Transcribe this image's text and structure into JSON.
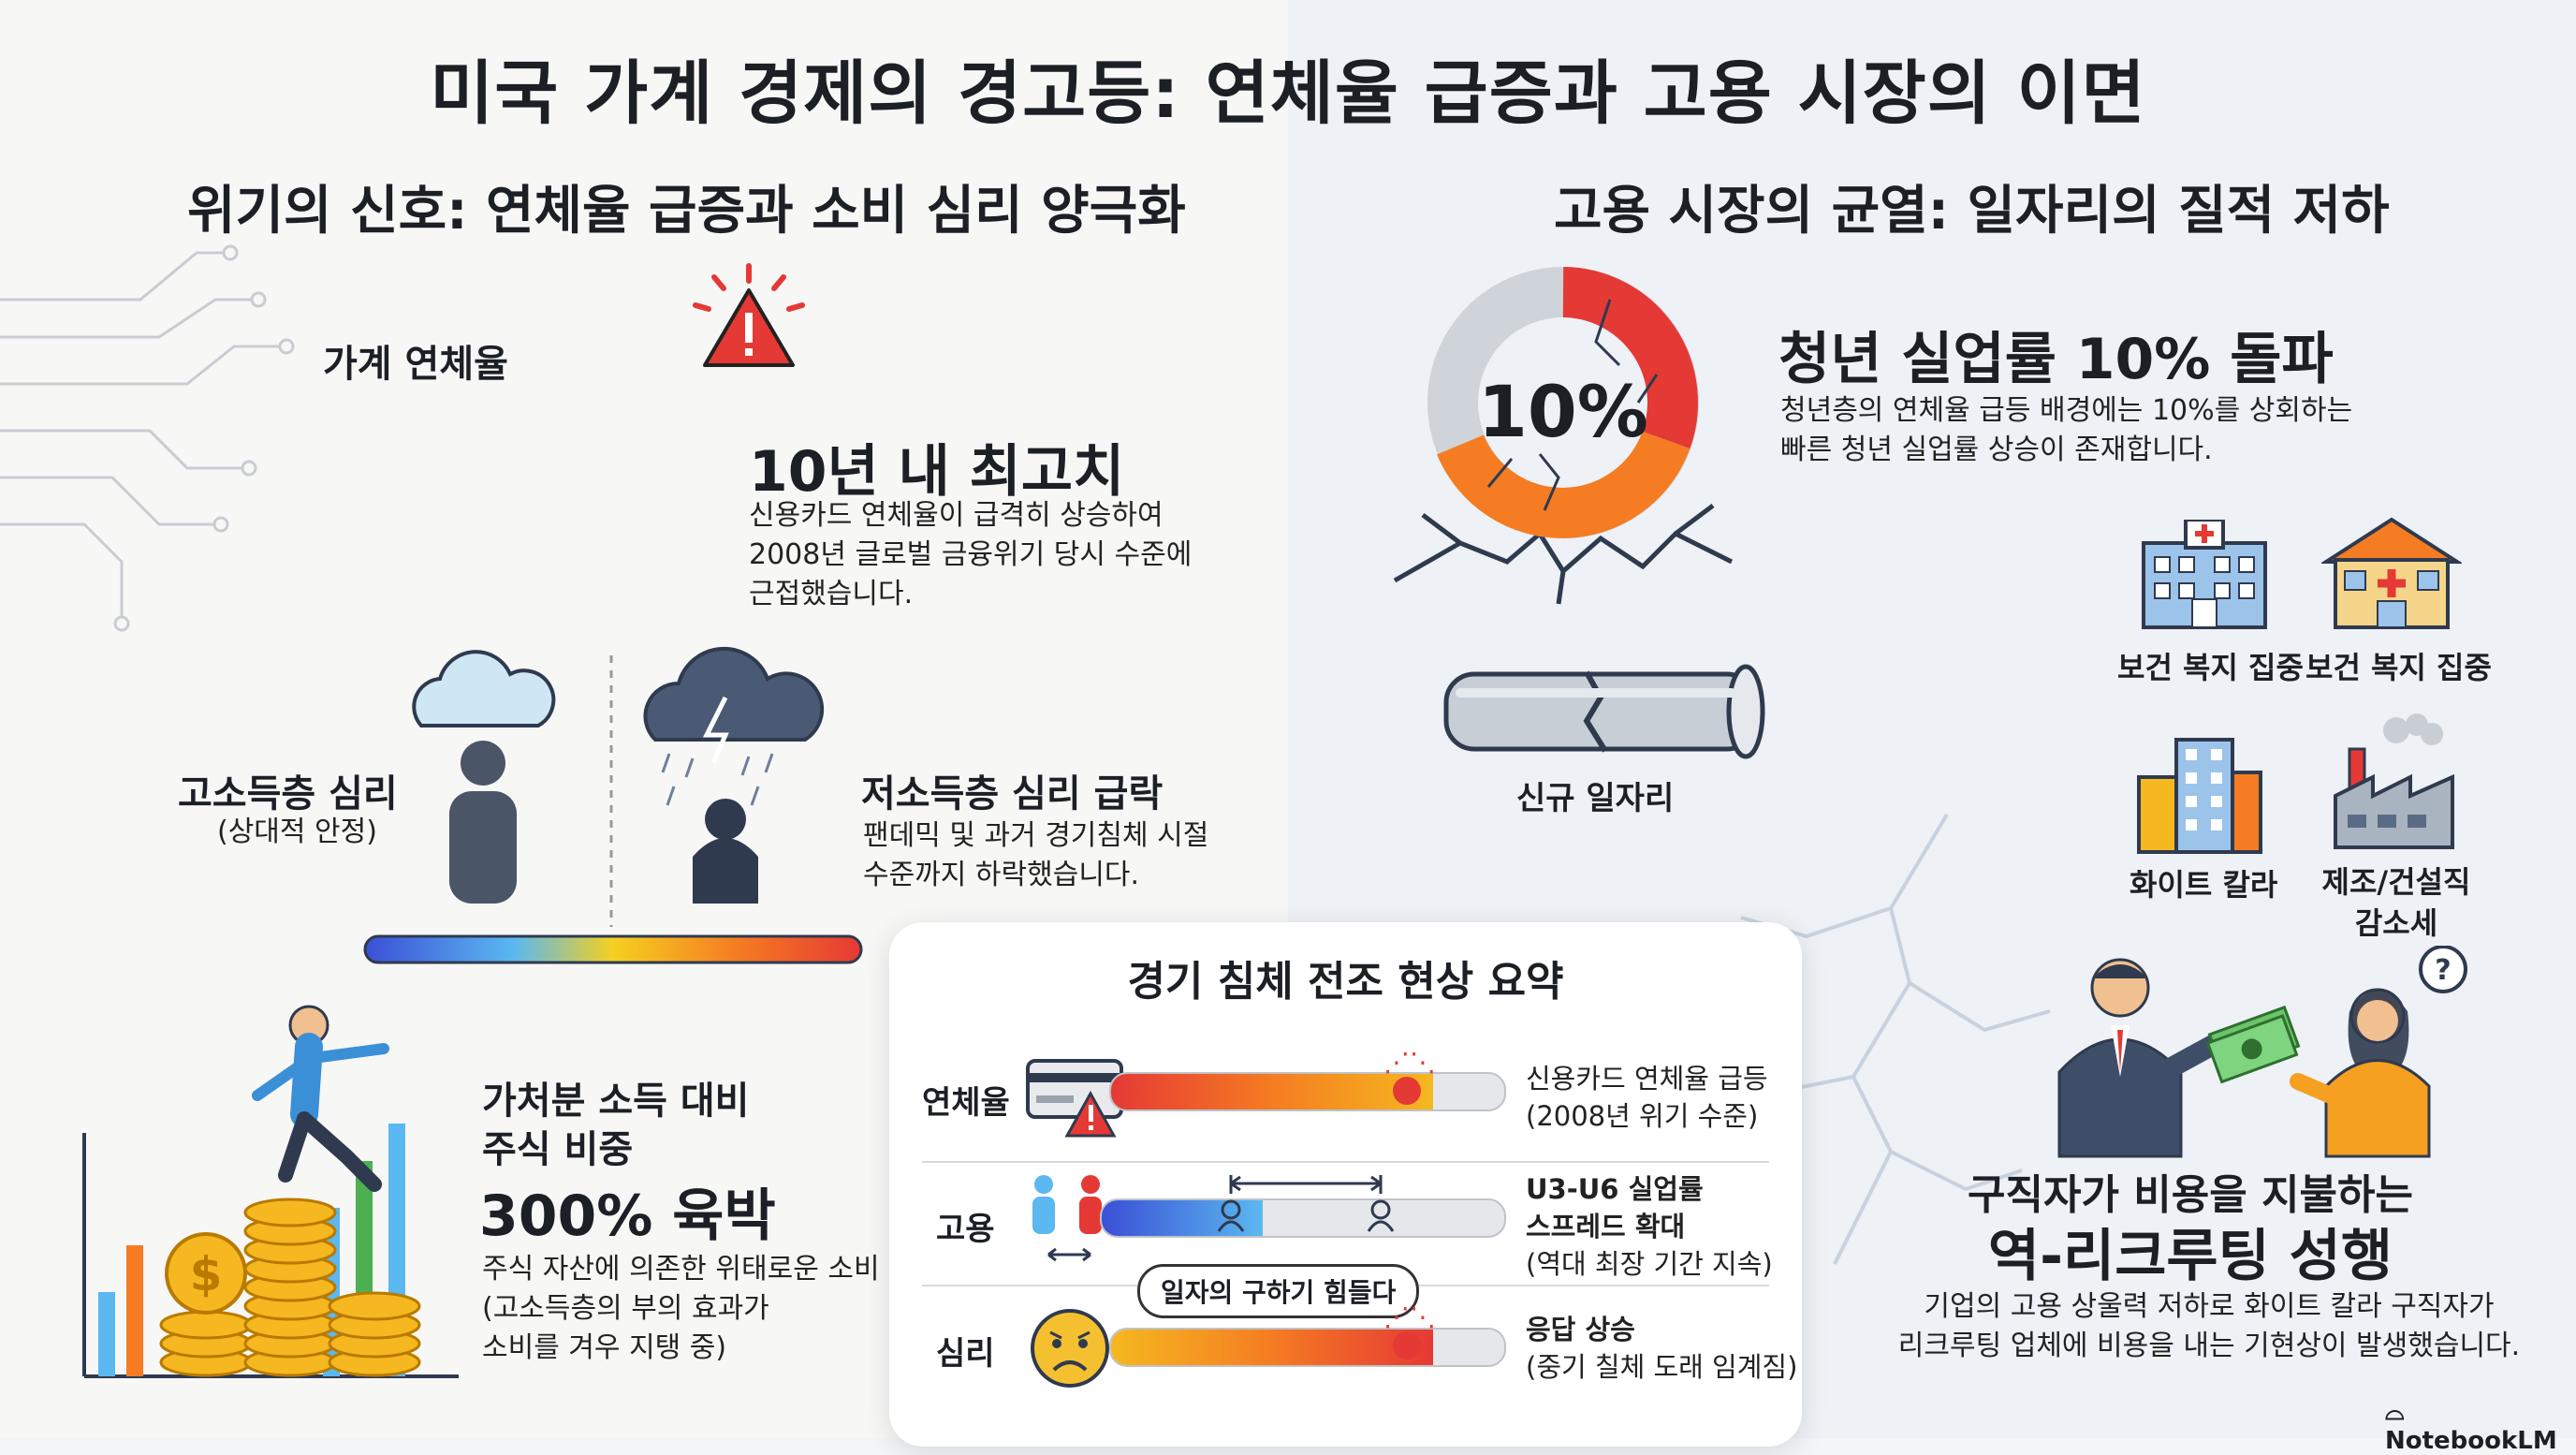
{
  "title": "미국 가계 경제의 경고등: 연체율 급증과 고용 시장의 이면",
  "left": {
    "section_title": "위기의 신호: 연체율 급증과 소비 심리 양극화",
    "delinquency_label": "가계 연체율",
    "highest_title": "10년 내 최고치",
    "highest_desc": [
      "신용카드 연체율이 급격히 상승하여",
      "2008년 글로벌 금융위기 당시 수준에",
      "근접했습니다."
    ],
    "high_income_title": "고소득층 심리",
    "high_income_sub": "(상대적 안정)",
    "low_income_title": "저소득층 심리 급락",
    "low_income_desc": [
      "팬데믹 및 과거 경기침체 시절",
      "수준까지 하락했습니다."
    ],
    "stock_title": [
      "가처분 소득 대비",
      "주식 비중"
    ],
    "stock_big": "300% 육박",
    "stock_desc": [
      "주식 자산에 의존한 위태로운 소비",
      "(고소득층의 부의 효과가",
      "소비를 겨우 지탱 중)"
    ]
  },
  "right": {
    "section_title": "고용 시장의 균열: 일자리의 질적 저하",
    "donut_value": "10%",
    "youth_title": "청년 실업률 10% 돌파",
    "youth_desc": [
      "청년층의 연체율 급등 배경에는 10%를 상회하는",
      "빠른 청년 실업률 상승이 존재합니다."
    ],
    "new_jobs": "신규 일자리",
    "icon_labels": [
      "보건 복지 집중",
      "보건 복지 집중",
      "화이트 칼라",
      "제조/건설직"
    ],
    "decline_label": "감소세",
    "reverse_title_1": "구직자가 비용을 지불하는",
    "reverse_title_2": "역-리크루팅 성행",
    "reverse_desc": [
      "기업의 고용 상울력 저하로 화이트 칼라 구직자가",
      "리크루팅 업체에 비용을 내는 기현상이 발생했습니다."
    ],
    "logo": "NotebookLM"
  },
  "summary": {
    "title": "경기 침체 전조 현상 요약",
    "rows": [
      {
        "label": "연체율",
        "desc": [
          "신용카드 연체율 급등",
          "(2008년 위기 수준)"
        ]
      },
      {
        "label": "고용",
        "desc": [
          "U3-U6 실업률",
          "스프레드 확대",
          "(역대 최장 기간 지속)"
        ]
      },
      {
        "label": "심리",
        "bubble": "일자의 구하기 힘들다",
        "desc": [
          "응답 상승",
          "(중기 칠체 도래 임계짐)"
        ]
      }
    ]
  },
  "colors": {
    "red": "#e53935",
    "orange": "#f57c22",
    "blue": "#3b6fd6",
    "navy": "#2f3a4f"
  }
}
